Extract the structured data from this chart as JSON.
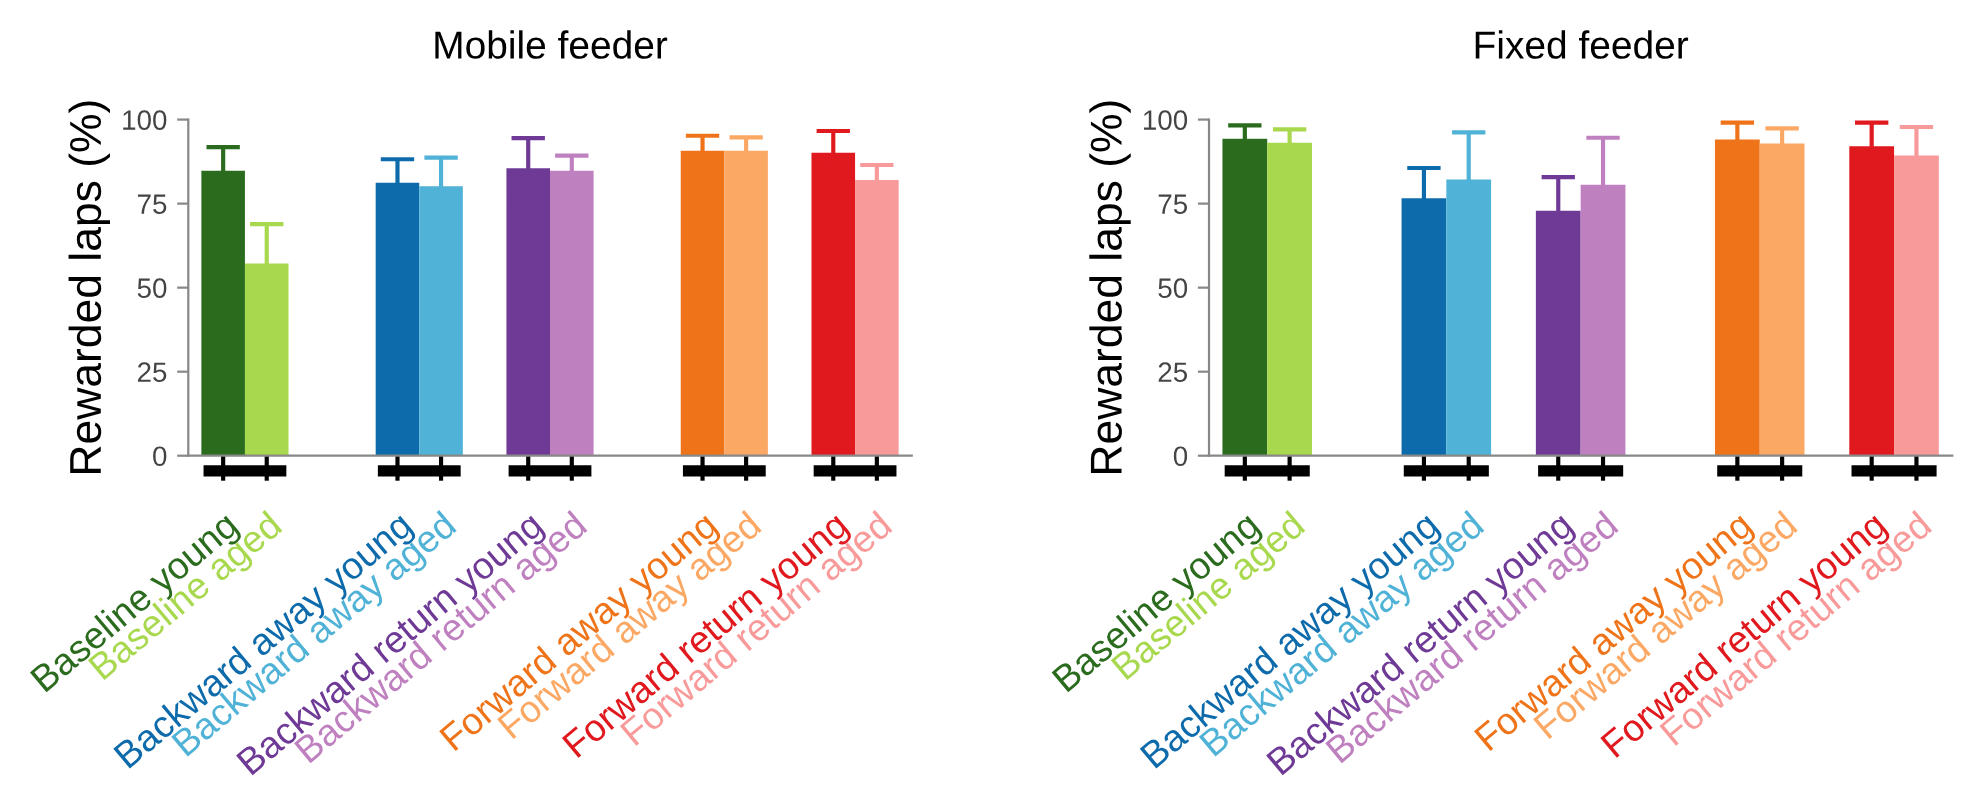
{
  "chart_data": [
    {
      "type": "bar",
      "title": "Mobile feeder",
      "ylabel": "Rewarded laps (%)",
      "categories": [
        "Baseline young",
        "Baseline aged",
        null,
        null,
        "Backward away young",
        "Backward away aged",
        null,
        "Backward return young",
        "Backward return aged",
        null,
        null,
        "Forward away young",
        "Forward away aged",
        null,
        "Forward return young",
        "Forward return aged"
      ],
      "values": [
        84.8,
        57.2,
        null,
        null,
        81.2,
        80.2,
        null,
        85.5,
        84.8,
        null,
        null,
        90.7,
        90.7,
        null,
        90.1,
        82.0
      ],
      "errors": [
        7,
        11.7,
        null,
        null,
        7,
        8.5,
        null,
        9,
        4.5,
        null,
        null,
        4.5,
        4,
        null,
        6.5,
        4.5
      ],
      "colors": [
        "#2a6b1e",
        "#a8d84e",
        null,
        null,
        "#0e6bab",
        "#4fb2d6",
        null,
        "#6e3a96",
        "#bf80c0",
        null,
        null,
        "#ef7419",
        "#fca865",
        null,
        "#e0191f",
        "#f99a9a"
      ],
      "ylim": [
        0,
        100
      ],
      "yticks": [
        0,
        25,
        50,
        75,
        100
      ]
    },
    {
      "type": "bar",
      "title": "Fixed feeder",
      "ylabel": "Rewarded laps (%)",
      "categories": [
        "Baseline young",
        "Baseline aged",
        null,
        null,
        "Backward away young",
        "Backward away aged",
        null,
        "Backward return young",
        "Backward return aged",
        null,
        null,
        "Forward away young",
        "Forward away aged",
        null,
        "Forward return young",
        "Forward return aged"
      ],
      "values": [
        94.3,
        93.1,
        null,
        null,
        76.6,
        82.2,
        null,
        72.9,
        80.6,
        null,
        null,
        94.1,
        92.9,
        null,
        92.1,
        89.3
      ],
      "errors": [
        4,
        4,
        null,
        null,
        9,
        14,
        null,
        10,
        14,
        null,
        null,
        5,
        4.5,
        null,
        7,
        8.5
      ],
      "colors": [
        "#2a6b1e",
        "#a8d84e",
        null,
        null,
        "#0e6bab",
        "#4fb2d6",
        null,
        "#6e3a96",
        "#bf80c0",
        null,
        null,
        "#ef7419",
        "#fca865",
        null,
        "#e0191f",
        "#f99a9a"
      ],
      "ylim": [
        0,
        100
      ],
      "yticks": [
        0,
        25,
        50,
        75,
        100
      ]
    }
  ]
}
